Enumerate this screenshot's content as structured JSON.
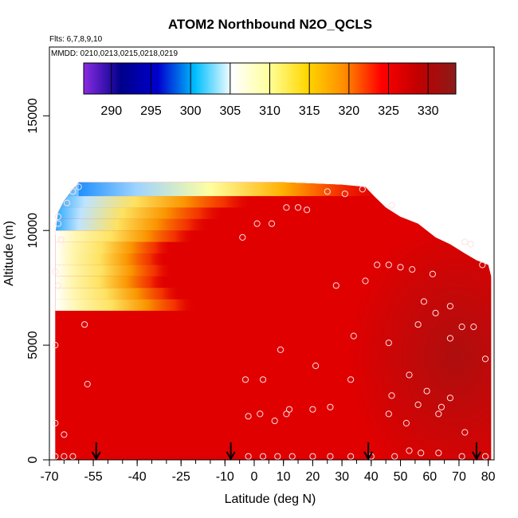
{
  "chart_data": {
    "type": "heatmap",
    "title": "ATOM2 Northbound N2O_QCLS",
    "subtitle_flights": "Flts: 6,7,8,9,10",
    "subtitle_dates": "MMDD: 0210,0213,0215,0218,0219",
    "xlabel": "Latitude (deg N)",
    "ylabel": "Altitude (m)",
    "xlim": [
      -70,
      82
    ],
    "ylim": [
      0,
      18000
    ],
    "x_ticks": [
      -70,
      -55,
      -40,
      -25,
      -10,
      0,
      10,
      20,
      30,
      40,
      50,
      60,
      70,
      80
    ],
    "x_tick_labels": [
      "-70",
      "-55",
      "-40",
      "-25",
      "-10",
      "0",
      "10",
      "20",
      "30",
      "40",
      "50",
      "60",
      "70",
      "80"
    ],
    "y_ticks": [
      0,
      5000,
      10000,
      15000
    ],
    "y_tick_labels": [
      "0",
      "5000",
      "10000",
      "15000"
    ],
    "colorbar": {
      "min": 286.5,
      "max": 333.5,
      "ticks": [
        290,
        295,
        300,
        305,
        310,
        315,
        320,
        325,
        330
      ],
      "tick_labels": [
        "290",
        "295",
        "300",
        "305",
        "310",
        "315",
        "320",
        "325",
        "330"
      ],
      "colors": [
        "#8a2be2",
        "#00008b",
        "#0000cd",
        "#00bfff",
        "#ffffff",
        "#ffff99",
        "#ffd700",
        "#ff8c00",
        "#ff0000",
        "#c00000",
        "#8b1a1a"
      ]
    },
    "background_value": 330,
    "low_value_region": {
      "lat_range": [
        -68,
        -20
      ],
      "alt_range": [
        6000,
        12000
      ],
      "min_value": 306
    },
    "arrows_x": [
      -54,
      -8,
      39,
      76
    ],
    "sample_points": [
      [
        -60,
        11900
      ],
      [
        -62,
        11700
      ],
      [
        -64,
        11200
      ],
      [
        -67,
        10600
      ],
      [
        -67,
        10300
      ],
      [
        -66,
        9600
      ],
      [
        -68,
        8200
      ],
      [
        -67,
        7600
      ],
      [
        -58,
        5900
      ],
      [
        -68,
        5000
      ],
      [
        -57,
        3300
      ],
      [
        -68,
        1600
      ],
      [
        -65,
        1100
      ],
      [
        -68,
        150
      ],
      [
        -65,
        150
      ],
      [
        -62,
        150
      ],
      [
        -4,
        9700
      ],
      [
        1,
        10300
      ],
      [
        6,
        10300
      ],
      [
        11,
        11000
      ],
      [
        15,
        11000
      ],
      [
        18,
        10900
      ],
      [
        25,
        11700
      ],
      [
        31,
        11600
      ],
      [
        37,
        11800
      ],
      [
        47,
        11100
      ],
      [
        28,
        7600
      ],
      [
        38,
        7800
      ],
      [
        42,
        8500
      ],
      [
        46,
        8500
      ],
      [
        50,
        8400
      ],
      [
        54,
        8300
      ],
      [
        61,
        8100
      ],
      [
        67,
        6700
      ],
      [
        72,
        9500
      ],
      [
        74,
        9400
      ],
      [
        78,
        8500
      ],
      [
        58,
        6900
      ],
      [
        62,
        6400
      ],
      [
        56,
        5900
      ],
      [
        67,
        5300
      ],
      [
        71,
        5800
      ],
      [
        75,
        5800
      ],
      [
        34,
        5400
      ],
      [
        46,
        5100
      ],
      [
        9,
        4800
      ],
      [
        21,
        4100
      ],
      [
        -3,
        3500
      ],
      [
        3,
        3500
      ],
      [
        33,
        3500
      ],
      [
        53,
        3700
      ],
      [
        59,
        3000
      ],
      [
        56,
        2400
      ],
      [
        47,
        2800
      ],
      [
        67,
        2700
      ],
      [
        64,
        2300
      ],
      [
        -2,
        1900
      ],
      [
        2,
        2000
      ],
      [
        11,
        2000
      ],
      [
        12,
        2200
      ],
      [
        20,
        2200
      ],
      [
        26,
        2300
      ],
      [
        7,
        1700
      ],
      [
        46,
        2000
      ],
      [
        52,
        1600
      ],
      [
        63,
        2000
      ],
      [
        72,
        1200
      ],
      [
        79,
        4400
      ],
      [
        -2,
        150
      ],
      [
        3,
        150
      ],
      [
        8,
        150
      ],
      [
        13,
        150
      ],
      [
        20,
        150
      ],
      [
        26,
        150
      ],
      [
        33,
        150
      ],
      [
        40,
        150
      ],
      [
        48,
        150
      ],
      [
        53,
        400
      ],
      [
        57,
        300
      ],
      [
        63,
        300
      ],
      [
        71,
        150
      ],
      [
        79,
        150
      ]
    ]
  }
}
